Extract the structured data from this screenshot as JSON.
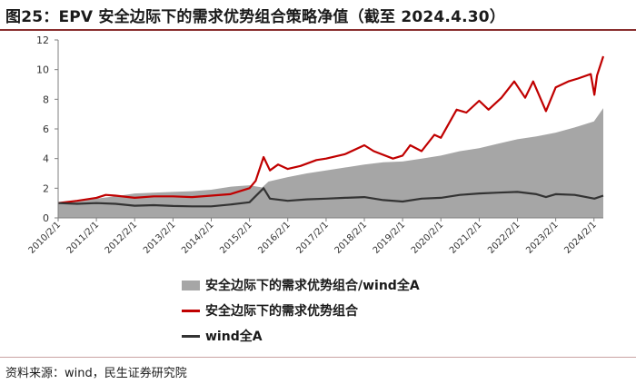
{
  "title": "图25：EPV 安全边际下的需求优势组合策略净值（截至 2024.4.30）",
  "source": "资料来源：wind，民生证券研究院",
  "chart_data": {
    "type": "line",
    "x_ticks": [
      "2010/2/1",
      "2011/2/1",
      "2012/2/1",
      "2013/2/1",
      "2014/2/1",
      "2015/2/1",
      "2016/2/1",
      "2017/2/1",
      "2018/2/1",
      "2019/2/1",
      "2020/2/1",
      "2021/2/1",
      "2022/2/1",
      "2023/2/1",
      "2024/2/1"
    ],
    "xlim": [
      "2010/2/1",
      "2024/4/30"
    ],
    "ylim": [
      0,
      12
    ],
    "y_ticks": [
      0,
      2,
      4,
      6,
      8,
      10,
      12
    ],
    "grid": false,
    "legend_position": "bottom-center",
    "series": [
      {
        "name": "安全边际下的需求优势组合/wind全A",
        "render": "area",
        "color": "#a6a6a6",
        "x": [
          "2010/2/1",
          "2010/8/1",
          "2011/2/1",
          "2011/8/1",
          "2012/2/1",
          "2012/8/1",
          "2013/2/1",
          "2013/8/1",
          "2014/2/1",
          "2014/8/1",
          "2015/2/1",
          "2015/6/1",
          "2015/8/1",
          "2016/2/1",
          "2016/8/1",
          "2017/2/1",
          "2017/8/1",
          "2018/2/1",
          "2018/8/1",
          "2019/2/1",
          "2019/8/1",
          "2020/2/1",
          "2020/8/1",
          "2021/2/1",
          "2021/8/1",
          "2022/2/1",
          "2022/8/1",
          "2023/2/1",
          "2023/8/1",
          "2024/2/1",
          "2024/4/30"
        ],
        "values": [
          1.0,
          1.1,
          1.3,
          1.45,
          1.65,
          1.7,
          1.75,
          1.8,
          1.9,
          2.1,
          2.2,
          2.05,
          2.45,
          2.75,
          3.0,
          3.2,
          3.4,
          3.6,
          3.75,
          3.8,
          4.0,
          4.2,
          4.5,
          4.7,
          5.0,
          5.3,
          5.5,
          5.75,
          6.1,
          6.5,
          7.4
        ]
      },
      {
        "name": "安全边际下的需求优势组合",
        "render": "line",
        "color": "#c00000",
        "x": [
          "2010/2/1",
          "2010/8/1",
          "2011/2/1",
          "2011/5/1",
          "2011/8/1",
          "2012/2/1",
          "2012/8/1",
          "2013/2/1",
          "2013/8/1",
          "2014/2/1",
          "2014/8/1",
          "2015/2/1",
          "2015/4/1",
          "2015/6/15",
          "2015/8/15",
          "2015/11/1",
          "2016/2/1",
          "2016/6/1",
          "2016/11/1",
          "2017/2/1",
          "2017/8/1",
          "2018/2/1",
          "2018/5/1",
          "2018/11/1",
          "2019/2/1",
          "2019/4/15",
          "2019/8/1",
          "2019/12/1",
          "2020/2/1",
          "2020/7/1",
          "2020/10/1",
          "2021/2/1",
          "2021/5/1",
          "2021/9/1",
          "2022/1/1",
          "2022/4/15",
          "2022/7/1",
          "2022/10/31",
          "2023/2/1",
          "2023/6/1",
          "2023/9/1",
          "2024/1/1",
          "2024/2/5",
          "2024/3/1",
          "2024/4/30"
        ],
        "values": [
          1.0,
          1.15,
          1.35,
          1.55,
          1.5,
          1.35,
          1.45,
          1.45,
          1.4,
          1.5,
          1.6,
          2.0,
          2.5,
          4.1,
          3.2,
          3.6,
          3.3,
          3.5,
          3.9,
          4.0,
          4.3,
          4.9,
          4.5,
          4.0,
          4.2,
          4.9,
          4.5,
          5.6,
          5.4,
          7.3,
          7.1,
          7.9,
          7.3,
          8.1,
          9.2,
          8.1,
          9.2,
          7.2,
          8.8,
          9.2,
          9.4,
          9.7,
          8.3,
          9.6,
          10.9
        ]
      },
      {
        "name": "wind全A",
        "render": "line",
        "color": "#333333",
        "x": [
          "2010/2/1",
          "2010/8/1",
          "2011/2/1",
          "2011/8/1",
          "2012/2/1",
          "2012/8/1",
          "2013/2/1",
          "2013/8/1",
          "2014/2/1",
          "2014/8/1",
          "2015/2/1",
          "2015/6/15",
          "2015/8/15",
          "2016/2/1",
          "2016/8/1",
          "2017/2/1",
          "2017/8/1",
          "2018/2/1",
          "2018/8/1",
          "2019/2/1",
          "2019/8/1",
          "2020/2/1",
          "2020/8/1",
          "2021/2/1",
          "2021/8/1",
          "2022/2/1",
          "2022/8/1",
          "2022/10/31",
          "2023/2/1",
          "2023/8/1",
          "2024/2/5",
          "2024/4/30"
        ],
        "values": [
          1.0,
          0.95,
          1.0,
          0.95,
          0.82,
          0.86,
          0.8,
          0.78,
          0.78,
          0.9,
          1.05,
          2.0,
          1.3,
          1.15,
          1.25,
          1.3,
          1.35,
          1.4,
          1.2,
          1.1,
          1.3,
          1.35,
          1.55,
          1.65,
          1.7,
          1.75,
          1.6,
          1.4,
          1.6,
          1.55,
          1.3,
          1.5
        ]
      }
    ]
  }
}
